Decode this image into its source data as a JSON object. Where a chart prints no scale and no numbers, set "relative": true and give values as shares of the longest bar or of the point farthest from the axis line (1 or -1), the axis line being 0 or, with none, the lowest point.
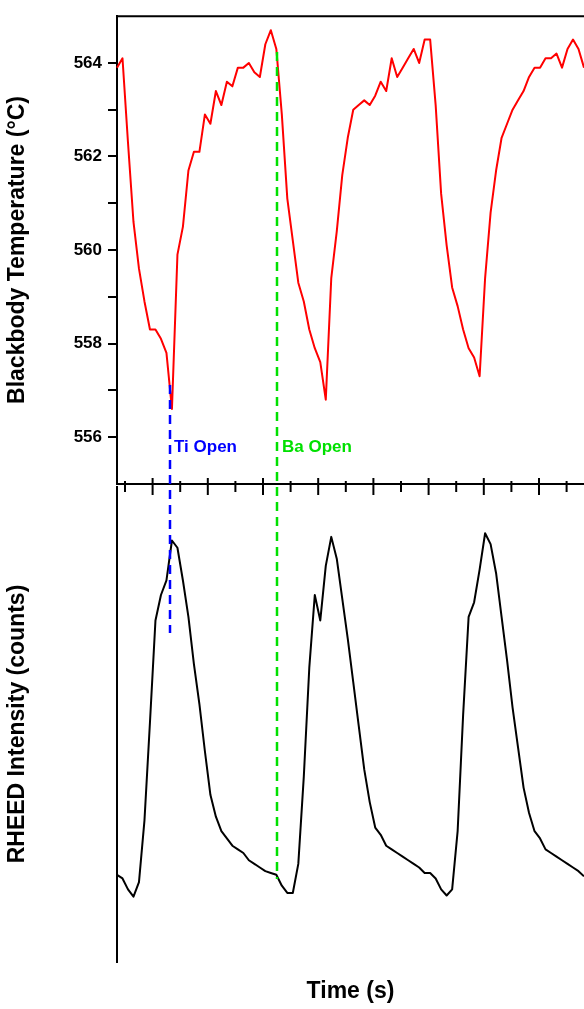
{
  "chart_data": [
    {
      "type": "line",
      "ylabel": "Blackbody Temperature (°C)",
      "categories": [
        null,
        null,
        null,
        null,
        null,
        null,
        null,
        null,
        null,
        null,
        null,
        null,
        null,
        null,
        null,
        null,
        null,
        null,
        null,
        null,
        null,
        null,
        null,
        null,
        null,
        null,
        null,
        null,
        null,
        null,
        null,
        null,
        null,
        null,
        null,
        null,
        null,
        null,
        null,
        null,
        null,
        null,
        null,
        null,
        null,
        null,
        null,
        null,
        null,
        null,
        null,
        null,
        null,
        null,
        null,
        null,
        null,
        null,
        null,
        null,
        null,
        null,
        null,
        null,
        null,
        null,
        null,
        null,
        null,
        null,
        null,
        null,
        null,
        null,
        null,
        null,
        null,
        null,
        null,
        null,
        null,
        null,
        null,
        null,
        null,
        null
      ],
      "ylim": [
        555,
        565
      ],
      "yticks": [
        556,
        {
          "value": 557,
          "label": null
        },
        558,
        {
          "value": 559,
          "label": null
        },
        560,
        {
          "value": 561,
          "label": null
        },
        562,
        {
          "value": 563,
          "label": null
        },
        564
      ],
      "tick_labels": "y",
      "marker": "none",
      "series": [
        {
          "color": "#ff0000",
          "values": [
            563.9,
            564.1,
            562.3,
            560.6,
            559.6,
            558.9,
            558.3,
            558.3,
            558.1,
            557.8,
            556.6,
            559.9,
            560.5,
            561.7,
            562.1,
            562.1,
            562.9,
            562.7,
            563.4,
            563.1,
            563.6,
            563.5,
            563.9,
            563.9,
            564.0,
            563.8,
            563.7,
            564.4,
            564.7,
            564.3,
            562.9,
            561.1,
            560.2,
            559.3,
            558.9,
            558.3,
            557.9,
            557.6,
            556.8,
            559.4,
            560.4,
            561.6,
            562.4,
            563.0,
            563.1,
            563.2,
            563.1,
            563.3,
            563.6,
            563.4,
            564.1,
            563.7,
            563.9,
            564.1,
            564.3,
            564.0,
            564.5,
            564.5,
            563.1,
            561.2,
            560.1,
            559.2,
            558.8,
            558.3,
            557.9,
            557.7,
            557.3,
            559.4,
            560.8,
            561.7,
            562.4,
            562.7,
            563.0,
            563.2,
            563.4,
            563.7,
            563.9,
            563.9,
            564.1,
            564.1,
            564.2,
            563.9,
            564.3,
            564.5,
            564.3,
            563.9
          ]
        }
      ],
      "annotations": [
        "Ti Open",
        "Ba Open"
      ]
    },
    {
      "type": "line",
      "xlabel": "Time (s)",
      "ylabel": "RHEED Intensity (counts)",
      "categories": [
        null,
        null,
        null,
        null,
        null,
        null,
        null,
        null,
        null,
        null,
        null,
        null,
        null,
        null,
        null,
        null,
        null,
        null,
        null,
        null,
        null,
        null,
        null,
        null,
        null,
        null,
        null,
        null,
        null,
        null,
        null,
        null,
        null,
        null,
        null,
        null,
        null,
        null,
        null,
        null,
        null,
        null,
        null,
        null,
        null,
        null,
        null,
        null,
        null,
        null,
        null,
        null,
        null,
        null,
        null,
        null,
        null,
        null,
        null,
        null,
        null,
        null,
        null,
        null,
        null,
        null,
        null,
        null,
        null,
        null,
        null,
        null,
        null,
        null,
        null,
        null,
        null,
        null,
        null,
        null,
        null,
        null,
        null,
        null,
        null,
        null
      ],
      "relative": true,
      "tick_labels": false,
      "marker": "none",
      "series": [
        {
          "color": "#000000",
          "values": [
            0.06,
            0.05,
            0.02,
            0,
            0.04,
            0.21,
            0.48,
            0.76,
            0.83,
            0.87,
            0.98,
            0.96,
            0.87,
            0.77,
            0.64,
            0.53,
            0.4,
            0.28,
            0.22,
            0.18,
            0.16,
            0.14,
            0.13,
            0.12,
            0.1,
            0.09,
            0.08,
            0.07,
            0.065,
            0.06,
            0.03,
            0.01,
            0.01,
            0.09,
            0.33,
            0.63,
            0.83,
            0.76,
            0.91,
            0.99,
            0.93,
            0.82,
            0.71,
            0.59,
            0.47,
            0.35,
            0.26,
            0.19,
            0.17,
            0.14,
            0.13,
            0.12,
            0.11,
            0.1,
            0.09,
            0.08,
            0.065,
            0.065,
            0.05,
            0.02,
            0.003,
            0.02,
            0.18,
            0.5,
            0.77,
            0.81,
            0.9,
            1,
            0.97,
            0.89,
            0.77,
            0.65,
            0.52,
            0.41,
            0.3,
            0.23,
            0.18,
            0.16,
            0.13,
            0.12,
            0.11,
            0.1,
            0.09,
            0.08,
            0.07,
            0.056
          ]
        }
      ]
    }
  ]
}
